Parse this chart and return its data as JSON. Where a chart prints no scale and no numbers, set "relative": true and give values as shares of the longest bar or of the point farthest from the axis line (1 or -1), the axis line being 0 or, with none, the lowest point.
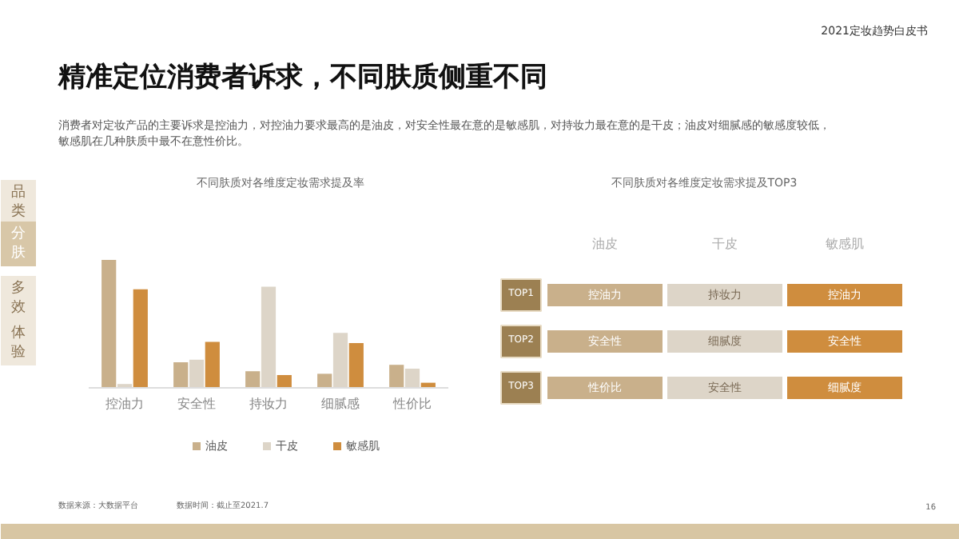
{
  "chart_data": [
    {
      "type": "other",
      "title": "精准定位消费者诉求，不同肤质侧重不同",
      "subtitle": "消费者对定妆产品的主要诉求是控油力，对控油力要求最高的是油皮，对安全性最在意的是敏感肌，对持妆力最在意的是干皮；油皮对细腻感的敏感度较低，",
      "annotations": [
        "敏感肌在几种肤质中最不在意性价比。",
        "2021定妆趋势白皮书",
        "品类",
        "分肤",
        "多效",
        "体验",
        "数据来源：大数据平台",
        "数据时间：截止至2021.7",
        "16"
      ]
    },
    {
      "type": "bar",
      "title": "不同肤质对各维度定妆需求提及率",
      "relative": true,
      "categories": [
        "控油力",
        "安全性",
        "持妆力",
        "细腻感",
        "性价比"
      ],
      "series": [
        {
          "name": "油皮",
          "color": "#c9b08b",
          "values": [
            1,
            0.2,
            0.13,
            0.11,
            0.18
          ]
        },
        {
          "name": "干皮",
          "color": "#ddd5c8",
          "values": [
            0.03,
            0.22,
            0.79,
            0.43,
            0.15
          ]
        },
        {
          "name": "敏感肌",
          "color": "#cf8d3e",
          "values": [
            0.77,
            0.36,
            0.1,
            0.35,
            0.04
          ]
        }
      ],
      "legend": "bottom",
      "grid": false
    },
    {
      "type": "other",
      "title": "不同肤质对各维度定妆需求提及TOP3",
      "categories": [
        "油皮",
        "干皮",
        "敏感肌"
      ],
      "y_categories": [
        "TOP1",
        "TOP2",
        "TOP3"
      ],
      "colors": [
        "#c9b08b",
        "#ddd5c8",
        "#cf8d3e"
      ],
      "cell_labels": [
        [
          "控油力",
          "持妆力",
          "控油力"
        ],
        [
          "安全性",
          "细腻度",
          "安全性"
        ],
        [
          "性价比",
          "安全性",
          "细腻度"
        ]
      ]
    }
  ]
}
